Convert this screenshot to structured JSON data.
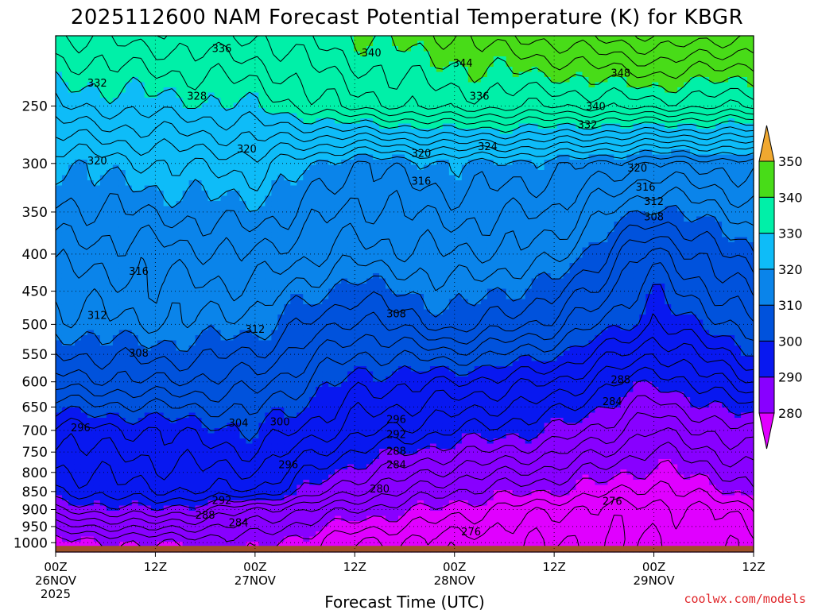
{
  "chart_data": {
    "type": "heatmap",
    "title": "2025112600 NAM Forecast Potential Temperature (K) for KBGR",
    "xlabel": "Forecast Time (UTC)",
    "ylabel": "",
    "credit": "coolwx.com/models",
    "y_scale": "log-pressure (hPa)",
    "ylim": [
      1000,
      200
    ],
    "xlim": [
      "2025-11-26 00Z",
      "2025-11-29 12Z"
    ],
    "x_ticks": [
      {
        "label": "00Z",
        "date": "26NOV",
        "year": "2025"
      },
      {
        "label": "12Z",
        "date": "",
        "year": ""
      },
      {
        "label": "00Z",
        "date": "27NOV",
        "year": ""
      },
      {
        "label": "12Z",
        "date": "",
        "year": ""
      },
      {
        "label": "00Z",
        "date": "28NOV",
        "year": ""
      },
      {
        "label": "12Z",
        "date": "",
        "year": ""
      },
      {
        "label": "00Z",
        "date": "29NOV",
        "year": ""
      },
      {
        "label": "12Z",
        "date": "",
        "year": ""
      }
    ],
    "y_ticks": [
      250,
      300,
      350,
      400,
      450,
      500,
      550,
      600,
      650,
      700,
      750,
      800,
      850,
      900,
      950,
      1000
    ],
    "grid": true,
    "colorbar": {
      "levels": [
        280,
        290,
        300,
        310,
        320,
        330,
        340,
        350
      ],
      "labels": [
        "280",
        "290",
        "300",
        "310",
        "320",
        "330",
        "340",
        "350"
      ],
      "colors": [
        "#e000ff",
        "#8800ff",
        "#0818f0",
        "#0052dc",
        "#0a84ea",
        "#0ebcf8",
        "#00f0a8",
        "#48dc18",
        "#f0f030",
        "#f0a830"
      ]
    },
    "contour_interval_K": 2,
    "theta_profile_hours": [
      0,
      12,
      24,
      36,
      48,
      60,
      72,
      84
    ],
    "theta_profile_pressures": [
      1000,
      900,
      850,
      700,
      600,
      500,
      400,
      300,
      250,
      200
    ],
    "theta_profiles": [
      [
        279,
        288,
        292,
        297,
        305,
        311,
        315,
        320,
        328,
        334
      ],
      [
        280,
        290,
        294,
        298,
        306,
        312,
        315,
        322,
        329,
        335
      ],
      [
        281,
        286,
        294,
        300,
        305,
        311,
        316,
        323,
        330,
        336
      ],
      [
        276,
        282,
        286,
        295,
        299,
        305,
        313,
        318,
        335,
        340
      ],
      [
        275,
        279,
        282,
        292,
        298,
        309,
        314,
        320,
        337,
        342
      ],
      [
        274,
        276,
        280,
        290,
        296,
        305,
        313,
        319,
        336,
        345
      ],
      [
        274,
        275,
        277,
        284,
        290,
        298,
        303,
        316,
        337,
        348
      ],
      [
        275,
        277,
        281,
        288,
        296,
        303,
        310,
        317,
        336,
        346
      ]
    ],
    "contour_labels": [
      {
        "text": "336",
        "hour": 20,
        "p": 208
      },
      {
        "text": "340",
        "hour": 38,
        "p": 211
      },
      {
        "text": "344",
        "hour": 49,
        "p": 218
      },
      {
        "text": "348",
        "hour": 68,
        "p": 225
      },
      {
        "text": "332",
        "hour": 5,
        "p": 232
      },
      {
        "text": "328",
        "hour": 17,
        "p": 242
      },
      {
        "text": "336",
        "hour": 51,
        "p": 242
      },
      {
        "text": "340",
        "hour": 65,
        "p": 250
      },
      {
        "text": "332",
        "hour": 64,
        "p": 265
      },
      {
        "text": "324",
        "hour": 52,
        "p": 284
      },
      {
        "text": "320",
        "hour": 23,
        "p": 286
      },
      {
        "text": "320",
        "hour": 44,
        "p": 290
      },
      {
        "text": "320",
        "hour": 5,
        "p": 297
      },
      {
        "text": "320",
        "hour": 70,
        "p": 304
      },
      {
        "text": "316",
        "hour": 44,
        "p": 317
      },
      {
        "text": "316",
        "hour": 71,
        "p": 323
      },
      {
        "text": "312",
        "hour": 72,
        "p": 338
      },
      {
        "text": "308",
        "hour": 72,
        "p": 355
      },
      {
        "text": "316",
        "hour": 10,
        "p": 422
      },
      {
        "text": "312",
        "hour": 5,
        "p": 485
      },
      {
        "text": "312",
        "hour": 24,
        "p": 507
      },
      {
        "text": "308",
        "hour": 41,
        "p": 483
      },
      {
        "text": "308",
        "hour": 10,
        "p": 547
      },
      {
        "text": "288",
        "hour": 68,
        "p": 595
      },
      {
        "text": "284",
        "hour": 67,
        "p": 638
      },
      {
        "text": "296",
        "hour": 3,
        "p": 693
      },
      {
        "text": "304",
        "hour": 22,
        "p": 683
      },
      {
        "text": "300",
        "hour": 27,
        "p": 680
      },
      {
        "text": "296",
        "hour": 41,
        "p": 675
      },
      {
        "text": "292",
        "hour": 41,
        "p": 708
      },
      {
        "text": "288",
        "hour": 41,
        "p": 747
      },
      {
        "text": "296",
        "hour": 28,
        "p": 780
      },
      {
        "text": "284",
        "hour": 41,
        "p": 780
      },
      {
        "text": "280",
        "hour": 39,
        "p": 842
      },
      {
        "text": "292",
        "hour": 20,
        "p": 873
      },
      {
        "text": "276",
        "hour": 67,
        "p": 875
      },
      {
        "text": "288",
        "hour": 18,
        "p": 915
      },
      {
        "text": "284",
        "hour": 22,
        "p": 937
      },
      {
        "text": "276",
        "hour": 50,
        "p": 965
      }
    ],
    "surface_color": "#a05028"
  }
}
